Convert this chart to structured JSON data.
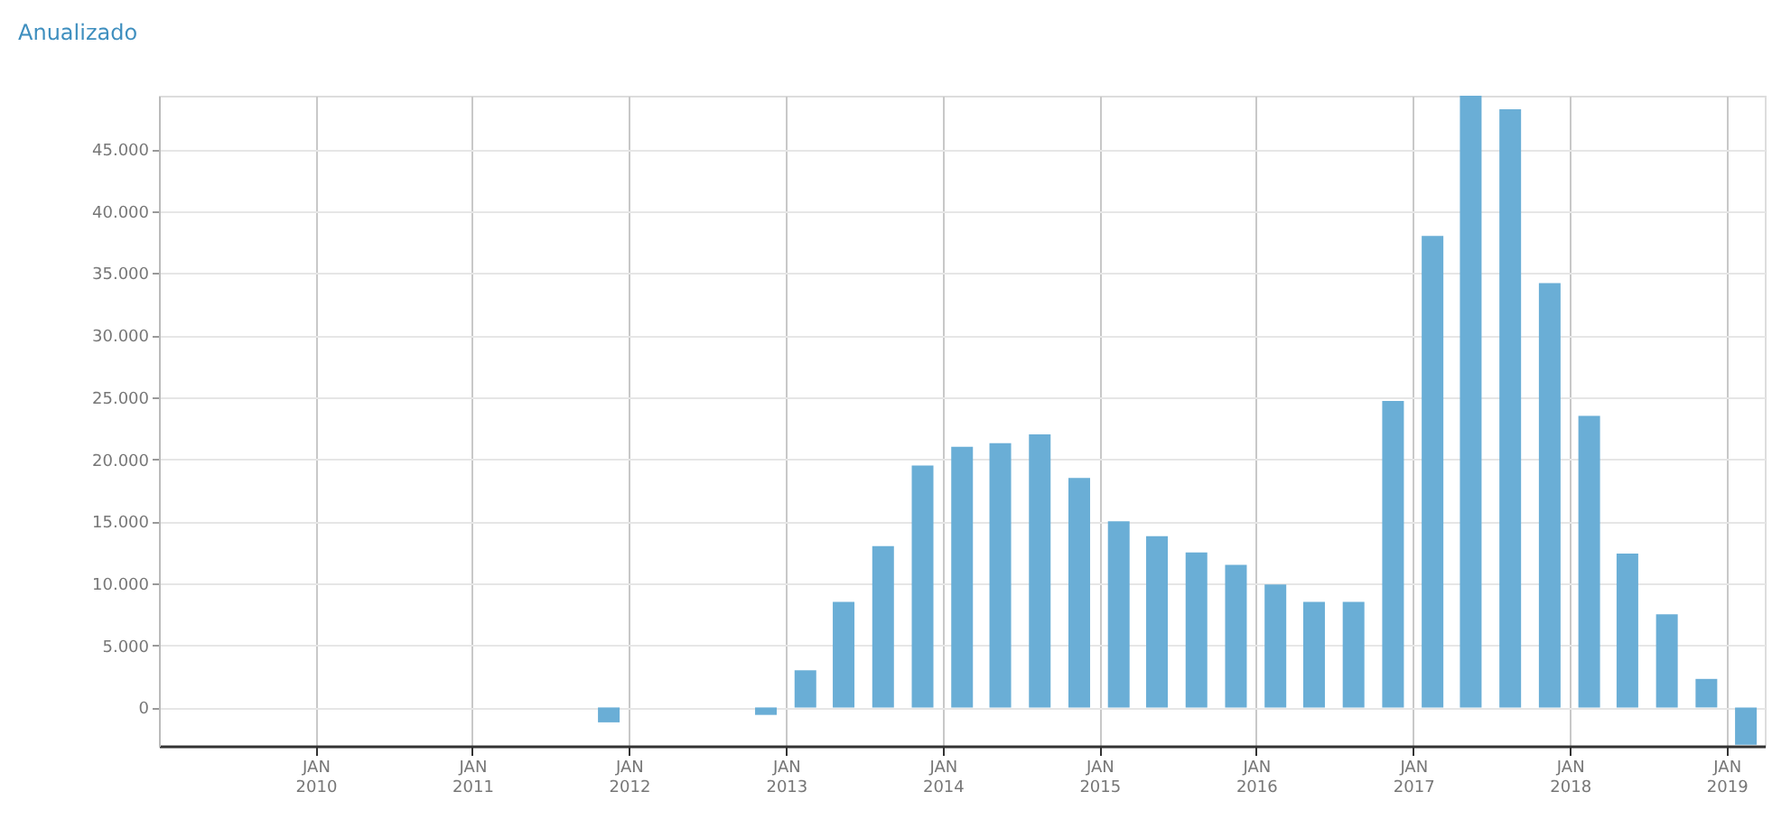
{
  "chart_data": {
    "type": "bar",
    "title": "Anualizado",
    "x": [
      "2011-11-15",
      "2012-11-15",
      "2013-02-15",
      "2013-05-15",
      "2013-08-15",
      "2013-11-15",
      "2014-02-15",
      "2014-05-15",
      "2014-08-15",
      "2014-11-15",
      "2015-02-15",
      "2015-05-15",
      "2015-08-15",
      "2015-11-15",
      "2016-02-15",
      "2016-05-15",
      "2016-08-15",
      "2016-11-15",
      "2017-02-15",
      "2017-05-15",
      "2017-08-15",
      "2017-11-15",
      "2018-02-15",
      "2018-05-15",
      "2018-08-15",
      "2018-11-15",
      "2019-02-15"
    ],
    "series": [
      {
        "color": "#6aaed6",
        "values": [
          -1200,
          -600,
          3000,
          8500,
          13000,
          19500,
          21000,
          21300,
          22000,
          18500,
          15000,
          13800,
          12500,
          11500,
          9900,
          8500,
          8500,
          24700,
          38000,
          49300,
          48200,
          34200,
          23500,
          12400,
          7500,
          2300,
          -3000
        ]
      }
    ],
    "xlim": [
      "2009-01-01",
      "2019-03-31"
    ],
    "xticks": [
      {
        "value": "2010-01-01",
        "label": "JAN 2010"
      },
      {
        "value": "2011-01-01",
        "label": "JAN 2011"
      },
      {
        "value": "2012-01-01",
        "label": "JAN 2012"
      },
      {
        "value": "2013-01-01",
        "label": "JAN 2013"
      },
      {
        "value": "2014-01-01",
        "label": "JAN 2014"
      },
      {
        "value": "2015-01-01",
        "label": "JAN 2015"
      },
      {
        "value": "2016-01-01",
        "label": "JAN 2016"
      },
      {
        "value": "2017-01-01",
        "label": "JAN 2017"
      },
      {
        "value": "2018-01-01",
        "label": "JAN 2018"
      },
      {
        "value": "2019-01-01",
        "label": "JAN 2019"
      }
    ],
    "ylim": [
      -3100,
      49300
    ],
    "yticks": [
      {
        "value": 0,
        "label": "0"
      },
      {
        "value": 5000,
        "label": "5.000"
      },
      {
        "value": 10000,
        "label": "10.000"
      },
      {
        "value": 15000,
        "label": "15.000"
      },
      {
        "value": 20000,
        "label": "20.000"
      },
      {
        "value": 25000,
        "label": "25.000"
      },
      {
        "value": 30000,
        "label": "30.000"
      },
      {
        "value": 35000,
        "label": "35.000"
      },
      {
        "value": 40000,
        "label": "40.000"
      },
      {
        "value": 45000,
        "label": "45.000"
      }
    ],
    "grid": true
  }
}
